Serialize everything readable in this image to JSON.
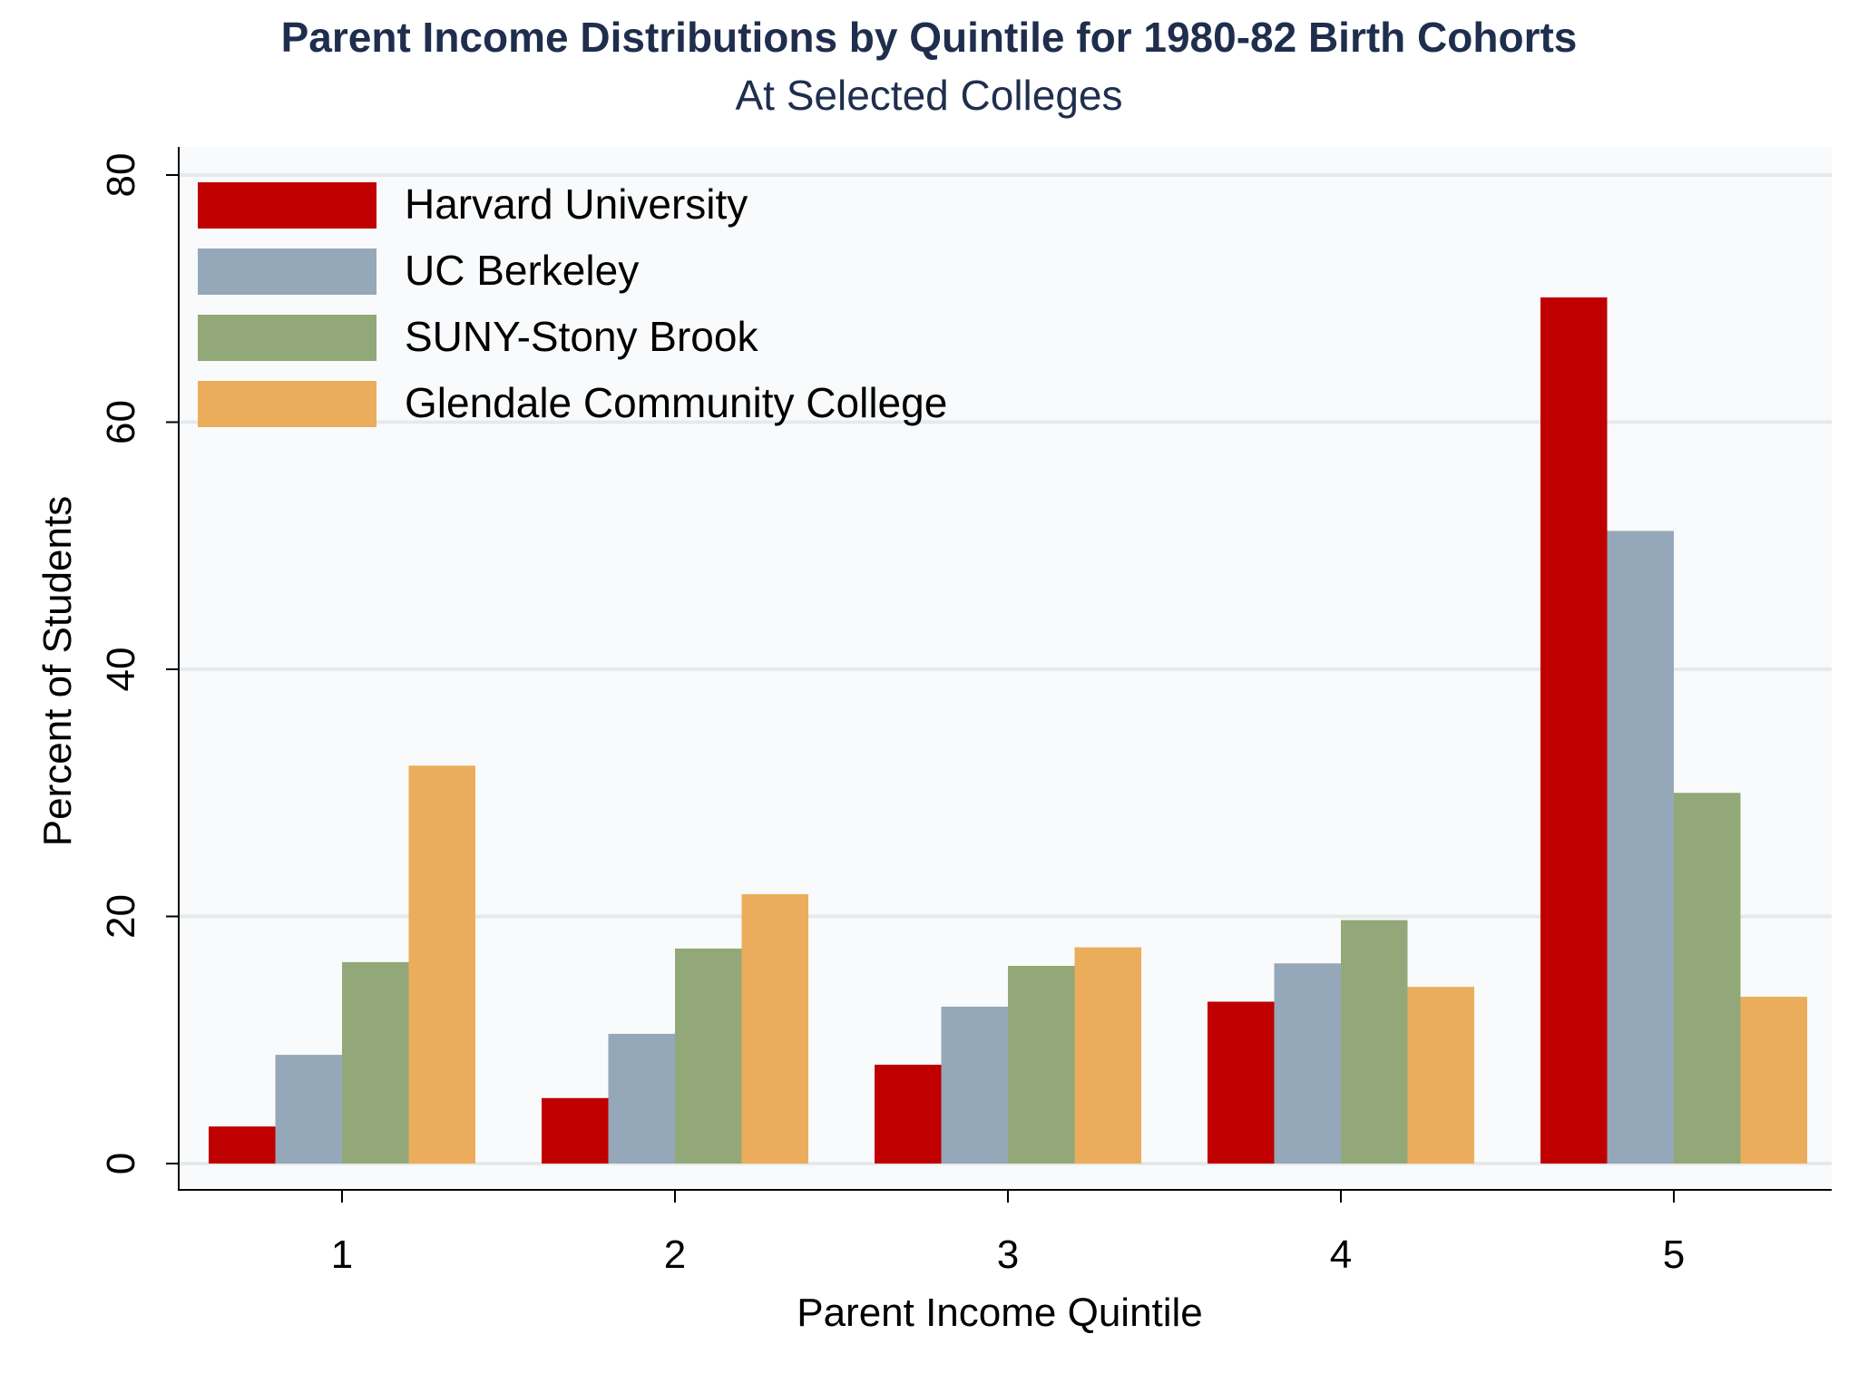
{
  "chart_data": {
    "type": "bar",
    "title": "Parent Income Distributions by Quintile for 1980-82 Birth Cohorts",
    "subtitle": "At Selected Colleges",
    "xlabel": "Parent Income Quintile",
    "ylabel": "Percent of Students",
    "ylim": [
      0,
      80
    ],
    "yticks": [
      "0",
      "20",
      "40",
      "60",
      "80"
    ],
    "categories": [
      "1",
      "2",
      "3",
      "4",
      "5"
    ],
    "legend_position": "top-left",
    "series": [
      {
        "name": "Harvard University",
        "color": "#c00000",
        "values": [
          3.0,
          5.3,
          8.0,
          13.1,
          70.1
        ]
      },
      {
        "name": "UC Berkeley",
        "color": "#95a8b9",
        "values": [
          8.8,
          10.5,
          12.7,
          16.2,
          51.2
        ]
      },
      {
        "name": "SUNY-Stony Brook",
        "color": "#93a878",
        "values": [
          16.3,
          17.4,
          16.0,
          19.7,
          30.0
        ]
      },
      {
        "name": "Glendale Community College",
        "color": "#ebad5c",
        "values": [
          32.2,
          21.8,
          17.5,
          14.3,
          13.5
        ]
      }
    ]
  }
}
